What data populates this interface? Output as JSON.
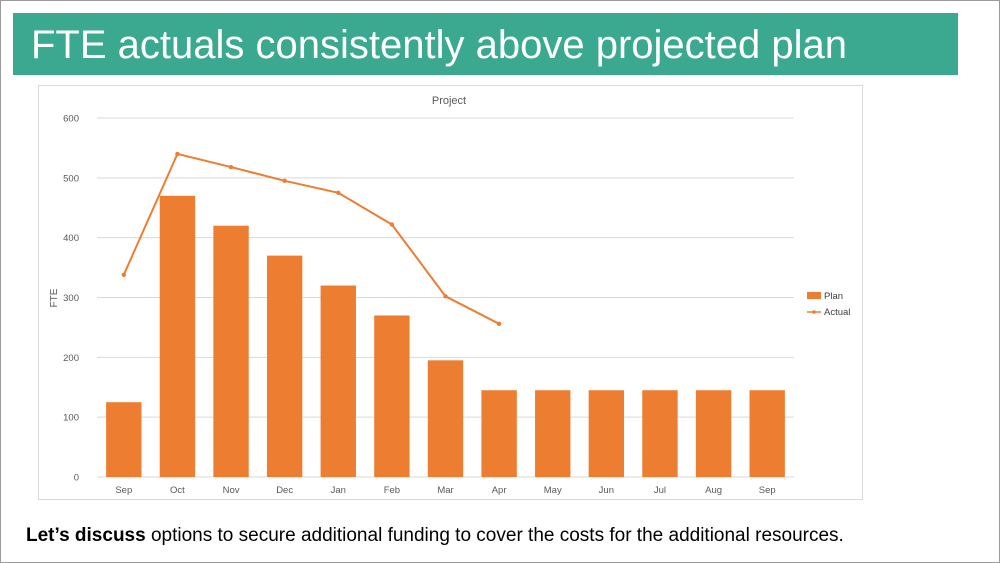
{
  "slide": {
    "title": "FTE actuals consistently above projected plan",
    "footer": {
      "bold": "Let’s discuss",
      "rest": " options to secure additional funding to cover the costs for the additional resources."
    }
  },
  "colors": {
    "title_bar": "#3aa98f",
    "bar": "#ed7d31",
    "line": "#ed7d31",
    "grid": "#d9d9d9",
    "axis_text": "#595959"
  },
  "chart_data": {
    "type": "bar",
    "title": "Project",
    "xlabel": "",
    "ylabel": "FTE",
    "ylim": [
      0,
      600
    ],
    "yticks": [
      0,
      100,
      200,
      300,
      400,
      500,
      600
    ],
    "grid": true,
    "legend_position": "right",
    "categories": [
      "Sep",
      "Oct",
      "Nov",
      "Dec",
      "Jan",
      "Feb",
      "Mar",
      "Apr",
      "May",
      "Jun",
      "Jul",
      "Aug",
      "Sep"
    ],
    "series": [
      {
        "name": "Plan",
        "type": "bar",
        "values": [
          125,
          470,
          420,
          370,
          320,
          270,
          195,
          145,
          145,
          145,
          145,
          145,
          145
        ]
      },
      {
        "name": "Actual",
        "type": "line",
        "values": [
          338,
          540,
          518,
          495,
          475,
          422,
          302,
          256,
          null,
          null,
          null,
          null,
          null
        ]
      }
    ]
  }
}
